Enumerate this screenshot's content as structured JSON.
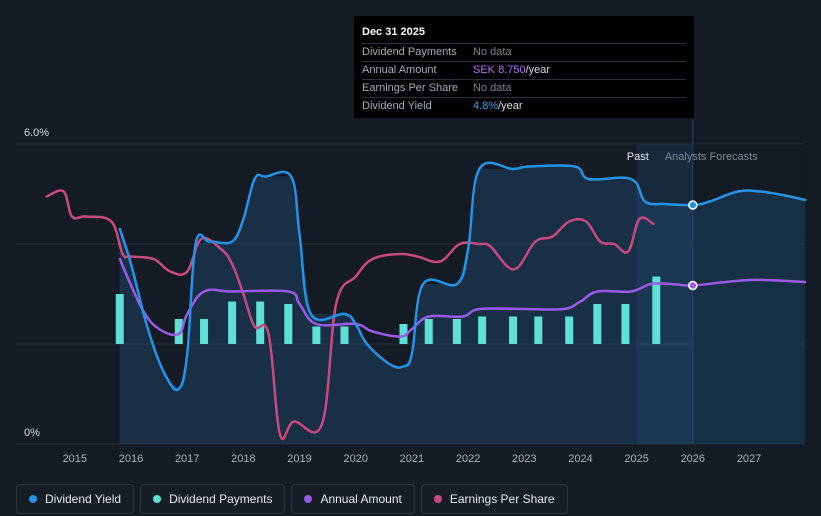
{
  "tooltip": {
    "date": "Dec 31 2025",
    "rows": [
      {
        "label": "Dividend Payments",
        "value": "No data",
        "unit": ""
      },
      {
        "label": "Annual Amount",
        "value": "SEK 8.750",
        "unit": "/year"
      },
      {
        "label": "Earnings Per Share",
        "value": "No data",
        "unit": ""
      },
      {
        "label": "Dividend Yield",
        "value": "4.8%",
        "unit": "/year"
      }
    ]
  },
  "labels": {
    "past": "Past",
    "forecast": "Analysts Forecasts"
  },
  "legend": [
    {
      "label": "Dividend Yield",
      "color": "#2394e8"
    },
    {
      "label": "Dividend Payments",
      "color": "#5ee0d6"
    },
    {
      "label": "Annual Amount",
      "color": "#9b5ae6"
    },
    {
      "label": "Earnings Per Share",
      "color": "#c94a7d"
    }
  ],
  "colors": {
    "yield": "#2394e8",
    "payments": "#5ee0d6",
    "amount": "#9b5ae6",
    "eps": "#c94a7d",
    "background": "#151b24"
  },
  "chart_data": {
    "type": "line",
    "x_ticks": [
      "2015",
      "2016",
      "2017",
      "2018",
      "2019",
      "2020",
      "2021",
      "2022",
      "2023",
      "2024",
      "2025",
      "2026",
      "2027"
    ],
    "y_ticks": [
      "0%",
      "6.0%"
    ],
    "ylim": [
      0,
      6.0
    ],
    "xlim": [
      2014.3,
      2028.0
    ],
    "past_end": 2025.0,
    "forecast_start": 2026.0,
    "series": [
      {
        "name": "Dividend Yield",
        "key": "yield",
        "points": [
          [
            2015.8,
            4.3
          ],
          [
            2016.0,
            3.6
          ],
          [
            2016.3,
            2.3
          ],
          [
            2016.6,
            1.4
          ],
          [
            2016.85,
            1.1
          ],
          [
            2017.0,
            1.8
          ],
          [
            2017.15,
            4.0
          ],
          [
            2017.4,
            4.05
          ],
          [
            2017.8,
            4.05
          ],
          [
            2018.0,
            4.5
          ],
          [
            2018.2,
            5.3
          ],
          [
            2018.4,
            5.35
          ],
          [
            2018.85,
            5.35
          ],
          [
            2019.0,
            4.2
          ],
          [
            2019.2,
            2.6
          ],
          [
            2019.8,
            2.6
          ],
          [
            2020.0,
            2.4
          ],
          [
            2020.2,
            2.0
          ],
          [
            2020.6,
            1.6
          ],
          [
            2020.85,
            1.55
          ],
          [
            2021.0,
            1.8
          ],
          [
            2021.2,
            3.2
          ],
          [
            2021.8,
            3.2
          ],
          [
            2022.0,
            3.9
          ],
          [
            2022.2,
            5.5
          ],
          [
            2022.8,
            5.5
          ],
          [
            2023.1,
            5.55
          ],
          [
            2023.9,
            5.55
          ],
          [
            2024.15,
            5.3
          ],
          [
            2024.9,
            5.3
          ],
          [
            2025.15,
            4.85
          ],
          [
            2025.5,
            4.8
          ],
          [
            2026.0,
            4.78
          ],
          [
            2026.3,
            4.85
          ],
          [
            2026.8,
            5.05
          ],
          [
            2027.2,
            5.05
          ],
          [
            2027.6,
            4.98
          ],
          [
            2028.0,
            4.88
          ]
        ]
      },
      {
        "name": "Annual Amount",
        "key": "amount",
        "points": [
          [
            2015.8,
            3.7
          ],
          [
            2016.2,
            2.7
          ],
          [
            2016.5,
            2.3
          ],
          [
            2016.85,
            2.2
          ],
          [
            2017.0,
            2.6
          ],
          [
            2017.3,
            3.05
          ],
          [
            2017.8,
            3.05
          ],
          [
            2018.8,
            3.05
          ],
          [
            2019.0,
            2.8
          ],
          [
            2019.3,
            2.4
          ],
          [
            2020.0,
            2.4
          ],
          [
            2020.3,
            2.25
          ],
          [
            2020.8,
            2.15
          ],
          [
            2021.0,
            2.3
          ],
          [
            2021.3,
            2.55
          ],
          [
            2021.9,
            2.55
          ],
          [
            2022.2,
            2.7
          ],
          [
            2023.0,
            2.7
          ],
          [
            2023.7,
            2.7
          ],
          [
            2024.0,
            2.85
          ],
          [
            2024.3,
            3.05
          ],
          [
            2024.9,
            3.05
          ],
          [
            2025.25,
            3.2
          ],
          [
            2025.6,
            3.2
          ],
          [
            2026.0,
            3.17
          ],
          [
            2026.5,
            3.23
          ],
          [
            2027.0,
            3.28
          ],
          [
            2027.5,
            3.27
          ],
          [
            2028.0,
            3.24
          ]
        ]
      },
      {
        "name": "Earnings Per Share",
        "key": "eps",
        "points": [
          [
            2014.5,
            4.95
          ],
          [
            2014.8,
            5.05
          ],
          [
            2014.95,
            4.55
          ],
          [
            2015.2,
            4.55
          ],
          [
            2015.65,
            4.45
          ],
          [
            2015.85,
            3.8
          ],
          [
            2016.0,
            3.75
          ],
          [
            2016.4,
            3.7
          ],
          [
            2016.7,
            3.45
          ],
          [
            2017.0,
            3.45
          ],
          [
            2017.25,
            4.1
          ],
          [
            2017.6,
            3.9
          ],
          [
            2017.8,
            3.6
          ],
          [
            2018.0,
            3.0
          ],
          [
            2018.2,
            2.35
          ],
          [
            2018.45,
            2.2
          ],
          [
            2018.65,
            0.2
          ],
          [
            2018.9,
            0.45
          ],
          [
            2019.4,
            0.4
          ],
          [
            2019.65,
            2.8
          ],
          [
            2020.0,
            3.35
          ],
          [
            2020.3,
            3.7
          ],
          [
            2020.8,
            3.8
          ],
          [
            2021.1,
            3.75
          ],
          [
            2021.5,
            3.65
          ],
          [
            2021.85,
            4.0
          ],
          [
            2022.2,
            4.0
          ],
          [
            2022.4,
            3.95
          ],
          [
            2022.7,
            3.55
          ],
          [
            2022.9,
            3.55
          ],
          [
            2023.2,
            4.05
          ],
          [
            2023.5,
            4.15
          ],
          [
            2023.8,
            4.45
          ],
          [
            2024.1,
            4.45
          ],
          [
            2024.35,
            4.05
          ],
          [
            2024.6,
            4.0
          ],
          [
            2024.85,
            3.85
          ],
          [
            2025.05,
            4.5
          ],
          [
            2025.3,
            4.4
          ]
        ]
      }
    ],
    "bars": {
      "name": "Dividend Payments",
      "key": "payments",
      "points": [
        [
          2015.8,
          1.0
        ],
        [
          2016.85,
          0.5
        ],
        [
          2017.3,
          0.5
        ],
        [
          2017.8,
          0.85
        ],
        [
          2018.3,
          0.85
        ],
        [
          2018.8,
          0.8
        ],
        [
          2019.3,
          0.35
        ],
        [
          2019.8,
          0.35
        ],
        [
          2020.85,
          0.4
        ],
        [
          2021.3,
          0.5
        ],
        [
          2021.8,
          0.5
        ],
        [
          2022.25,
          0.55
        ],
        [
          2022.8,
          0.55
        ],
        [
          2023.25,
          0.55
        ],
        [
          2023.8,
          0.55
        ],
        [
          2024.3,
          0.8
        ],
        [
          2024.8,
          0.8
        ],
        [
          2025.35,
          1.35
        ]
      ]
    },
    "markers": [
      {
        "series": "yield",
        "x": 2026.0,
        "y": 4.78
      },
      {
        "series": "amount",
        "x": 2026.0,
        "y": 3.17
      }
    ]
  }
}
